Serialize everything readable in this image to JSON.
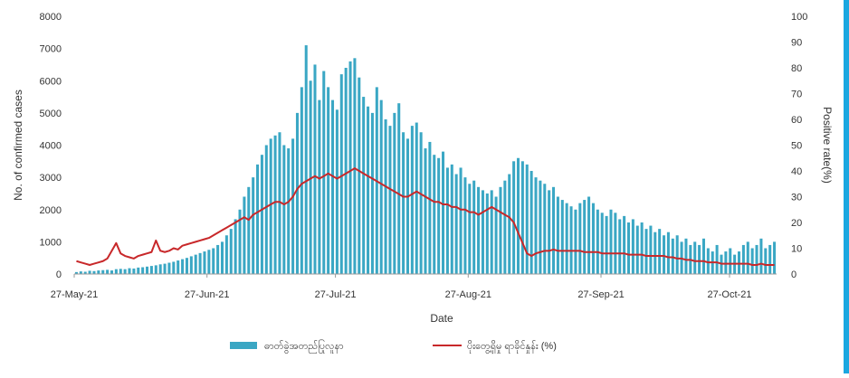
{
  "chart_data": {
    "type": "bar+line",
    "xlabel": "Date",
    "ylabel_left": "No. of confirmed cases",
    "ylabel_right": "Positive rate(%)",
    "ylim_left": [
      0,
      8000
    ],
    "ylim_right": [
      0,
      100
    ],
    "yticks_left": [
      "0",
      "1000",
      "2000",
      "3000",
      "4000",
      "5000",
      "6000",
      "7000",
      "8000"
    ],
    "yticks_right": [
      "0",
      "10",
      "20",
      "30",
      "40",
      "50",
      "60",
      "70",
      "80",
      "90",
      "100"
    ],
    "x_start": "2021-05-27",
    "x_end": "2021-11-07",
    "x_ticks": [
      {
        "date": "2021-05-27",
        "label": "27-May-21"
      },
      {
        "date": "2021-06-27",
        "label": "27-Jun-21"
      },
      {
        "date": "2021-07-27",
        "label": "27-Jul-21"
      },
      {
        "date": "2021-08-27",
        "label": "27-Aug-21"
      },
      {
        "date": "2021-09-27",
        "label": "27-Sep-21"
      },
      {
        "date": "2021-10-27",
        "label": "27-Oct-21"
      }
    ],
    "bar_series": {
      "color": "#3aa7c4",
      "legend_label": "ဓာတ်ခွဲအတည်ပြုလူနာ",
      "values": [
        60,
        80,
        70,
        100,
        90,
        110,
        120,
        130,
        110,
        150,
        160,
        150,
        180,
        170,
        200,
        210,
        230,
        250,
        270,
        300,
        320,
        350,
        380,
        420,
        460,
        500,
        550,
        600,
        650,
        700,
        750,
        800,
        900,
        1000,
        1200,
        1400,
        1700,
        2000,
        2400,
        2700,
        3000,
        3400,
        3700,
        4000,
        4200,
        4300,
        4400,
        4000,
        3900,
        4200,
        5000,
        5800,
        7100,
        6000,
        6500,
        5400,
        6300,
        5800,
        5400,
        5100,
        6200,
        6400,
        6600,
        6700,
        6100,
        5500,
        5200,
        5000,
        5800,
        5400,
        4800,
        4600,
        5000,
        5300,
        4400,
        4200,
        4600,
        4700,
        4400,
        3900,
        4100,
        3700,
        3600,
        3800,
        3300,
        3400,
        3100,
        3300,
        3000,
        2800,
        2900,
        2700,
        2600,
        2500,
        2600,
        2400,
        2700,
        2900,
        3100,
        3500,
        3600,
        3500,
        3400,
        3200,
        3000,
        2900,
        2800,
        2600,
        2700,
        2400,
        2300,
        2200,
        2100,
        2000,
        2200,
        2300,
        2400,
        2200,
        2000,
        1900,
        1800,
        2000,
        1900,
        1700,
        1800,
        1600,
        1700,
        1500,
        1600,
        1400,
        1500,
        1300,
        1400,
        1200,
        1300,
        1100,
        1200,
        1000,
        1100,
        900,
        1000,
        900,
        1100,
        800,
        700,
        900,
        600,
        700,
        800,
        600,
        700,
        900,
        1000,
        800,
        900,
        1100,
        800,
        900,
        1000
      ]
    },
    "line_series": {
      "color": "#c8282a",
      "legend_label": "ပိုးတွေ့ရှိမှု ရာခိုင်နှုန်း (%)",
      "values": [
        5,
        4.5,
        4,
        3.5,
        4,
        4.5,
        5,
        6,
        9,
        12,
        8,
        7,
        6.5,
        6,
        7,
        7.5,
        8,
        8.5,
        13,
        9,
        8.5,
        9,
        10,
        9.5,
        11,
        11.5,
        12,
        12.5,
        13,
        13.5,
        14,
        15,
        16,
        17,
        18,
        19,
        20,
        21,
        22,
        21,
        23,
        24,
        25,
        26,
        27,
        28,
        28,
        27,
        28,
        30,
        33,
        35,
        36,
        37,
        38,
        37,
        38,
        39,
        38,
        37,
        38,
        39,
        40,
        41,
        40,
        39,
        38,
        37,
        36,
        35,
        34,
        33,
        32,
        31,
        30,
        30,
        31,
        32,
        31,
        30,
        29,
        28,
        28,
        27,
        27,
        26,
        26,
        25,
        25,
        24,
        24,
        23,
        24,
        25,
        26,
        25,
        24,
        23,
        22,
        20,
        16,
        12,
        8,
        7,
        8,
        8.5,
        9,
        9,
        9.5,
        9,
        9,
        9,
        9,
        9,
        9,
        8.5,
        8.5,
        8.5,
        8.5,
        8,
        8,
        8,
        8,
        8,
        8,
        7.5,
        7.5,
        7.5,
        7.5,
        7,
        7,
        7,
        7,
        7,
        6.5,
        6.5,
        6,
        6,
        5.5,
        5.5,
        5,
        5,
        5,
        4.5,
        4.5,
        4.5,
        4,
        4,
        4,
        4,
        4,
        4,
        4,
        3.5,
        3.5,
        4,
        3.5,
        3.5,
        3.5
      ]
    }
  }
}
